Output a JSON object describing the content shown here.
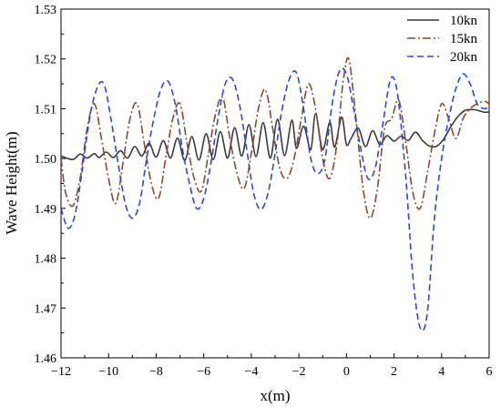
{
  "chart_data": {
    "type": "line",
    "title": "",
    "xlabel": "x(m)",
    "ylabel": "Wave Height(m)",
    "xlim": [
      -12,
      6
    ],
    "ylim": [
      1.46,
      1.53
    ],
    "xticks": [
      -12,
      -10,
      -8,
      -6,
      -4,
      -2,
      0,
      2,
      4,
      6
    ],
    "yticks": [
      1.46,
      1.47,
      1.48,
      1.49,
      1.5,
      1.51,
      1.52,
      1.53
    ],
    "xtick_labels": [
      "−12",
      "−10",
      "−8",
      "−6",
      "−4",
      "−2",
      "0",
      "2",
      "4",
      "6"
    ],
    "ytick_labels": [
      "1.46",
      "1.47",
      "1.48",
      "1.49",
      "1.50",
      "1.51",
      "1.52",
      "1.53"
    ],
    "grid": false,
    "legend_position": "top-right",
    "series": [
      {
        "name": "10kn",
        "color": "#3a3a3a",
        "dash": "solid",
        "x": [
          -12,
          -11.5,
          -11.2,
          -10.9,
          -10.6,
          -10.4,
          -10.1,
          -9.8,
          -9.5,
          -9.2,
          -8.9,
          -8.6,
          -8.3,
          -8.0,
          -7.7,
          -7.4,
          -7.1,
          -6.8,
          -6.5,
          -6.2,
          -5.9,
          -5.6,
          -5.3,
          -5.0,
          -4.7,
          -4.4,
          -4.1,
          -3.8,
          -3.5,
          -3.2,
          -2.9,
          -2.6,
          -2.3,
          -2.1,
          -1.8,
          -1.5,
          -1.3,
          -1.0,
          -0.7,
          -0.5,
          -0.2,
          0.0,
          0.2,
          0.5,
          0.8,
          1.1,
          1.4,
          1.7,
          2.0,
          2.3,
          2.6,
          2.9,
          3.2,
          3.5,
          3.8,
          4.1,
          4.4,
          4.7,
          5.0,
          5.4,
          5.8,
          6.0
        ],
        "y": [
          1.5005,
          1.4998,
          1.5009,
          1.5001,
          1.501,
          1.5002,
          1.5013,
          1.5002,
          1.5016,
          1.5001,
          1.5024,
          1.5005,
          1.5031,
          1.5003,
          1.5036,
          1.5001,
          1.5041,
          1.4996,
          1.5044,
          1.4997,
          1.505,
          1.4998,
          1.5054,
          1.5001,
          1.5062,
          1.5005,
          1.5068,
          1.5004,
          1.5072,
          1.5001,
          1.5079,
          1.5006,
          1.5077,
          1.5021,
          1.5065,
          1.5018,
          1.509,
          1.5018,
          1.5073,
          1.5023,
          1.5083,
          1.5028,
          1.5041,
          1.5061,
          1.5024,
          1.5056,
          1.5028,
          1.5046,
          1.5035,
          1.5045,
          1.5036,
          1.5053,
          1.5036,
          1.5025,
          1.5025,
          1.504,
          1.5065,
          1.5085,
          1.5097,
          1.5098,
          1.5093,
          1.5094
        ]
      },
      {
        "name": "15kn",
        "color": "#8b4a2e",
        "dash": "dashdot",
        "x": [
          -12,
          -11.8,
          -11.5,
          -11.2,
          -10.9,
          -10.6,
          -10.3,
          -10.0,
          -9.7,
          -9.4,
          -9.1,
          -8.8,
          -8.5,
          -8.2,
          -7.9,
          -7.6,
          -7.3,
          -7.0,
          -6.7,
          -6.4,
          -6.1,
          -5.8,
          -5.5,
          -5.2,
          -4.9,
          -4.6,
          -4.3,
          -4.0,
          -3.7,
          -3.4,
          -3.1,
          -2.8,
          -2.5,
          -2.2,
          -1.9,
          -1.6,
          -1.3,
          -1.0,
          -0.7,
          -0.4,
          -0.15,
          0.1,
          0.4,
          0.7,
          1.0,
          1.3,
          1.6,
          1.9,
          2.2,
          2.5,
          2.8,
          3.1,
          3.4,
          3.7,
          4.0,
          4.3,
          4.6,
          4.9,
          5.2,
          5.5,
          5.8,
          6.0
        ],
        "y": [
          1.5,
          1.493,
          1.4905,
          1.496,
          1.506,
          1.511,
          1.504,
          1.496,
          1.491,
          1.499,
          1.508,
          1.511,
          1.503,
          1.495,
          1.492,
          1.5,
          1.508,
          1.511,
          1.503,
          1.496,
          1.4935,
          1.501,
          1.509,
          1.5122,
          1.504,
          1.497,
          1.494,
          1.501,
          1.51,
          1.5138,
          1.506,
          1.498,
          1.496,
          1.5,
          1.508,
          1.515,
          1.51,
          1.5,
          1.496,
          1.503,
          1.515,
          1.52,
          1.508,
          1.494,
          1.488,
          1.494,
          1.506,
          1.508,
          1.5117,
          1.503,
          1.493,
          1.49,
          1.497,
          1.505,
          1.511,
          1.508,
          1.504,
          1.508,
          1.51,
          1.511,
          1.5115,
          1.511
        ]
      },
      {
        "name": "20kn",
        "color": "#2a4bd6",
        "dash": "dashed",
        "x": [
          -12,
          -11.7,
          -11.4,
          -11.1,
          -10.8,
          -10.5,
          -10.2,
          -9.9,
          -9.6,
          -9.3,
          -9.0,
          -8.7,
          -8.4,
          -8.1,
          -7.8,
          -7.5,
          -7.2,
          -6.9,
          -6.6,
          -6.3,
          -6.0,
          -5.7,
          -5.4,
          -5.1,
          -4.8,
          -4.5,
          -4.2,
          -3.9,
          -3.6,
          -3.3,
          -3.0,
          -2.7,
          -2.4,
          -2.1,
          -1.8,
          -1.5,
          -1.2,
          -0.9,
          -0.6,
          -0.3,
          0.0,
          0.3,
          0.6,
          0.9,
          1.2,
          1.5,
          1.8,
          2.0,
          2.2,
          2.5,
          2.8,
          3.1,
          3.4,
          3.7,
          4.0,
          4.3,
          4.6,
          4.9,
          5.2,
          5.5,
          5.8,
          6.0
        ],
        "y": [
          1.49,
          1.486,
          1.489,
          1.498,
          1.508,
          1.514,
          1.515,
          1.508,
          1.499,
          1.491,
          1.488,
          1.491,
          1.5,
          1.508,
          1.514,
          1.5155,
          1.511,
          1.502,
          1.495,
          1.49,
          1.492,
          1.499,
          1.508,
          1.515,
          1.516,
          1.511,
          1.502,
          1.493,
          1.4898,
          1.493,
          1.501,
          1.51,
          1.516,
          1.5172,
          1.51,
          1.5,
          1.497,
          1.5,
          1.511,
          1.5175,
          1.517,
          1.51,
          1.502,
          1.496,
          1.498,
          1.506,
          1.515,
          1.516,
          1.511,
          1.496,
          1.476,
          1.466,
          1.469,
          1.488,
          1.5,
          1.508,
          1.514,
          1.517,
          1.515,
          1.511,
          1.51,
          1.5105
        ]
      }
    ]
  }
}
